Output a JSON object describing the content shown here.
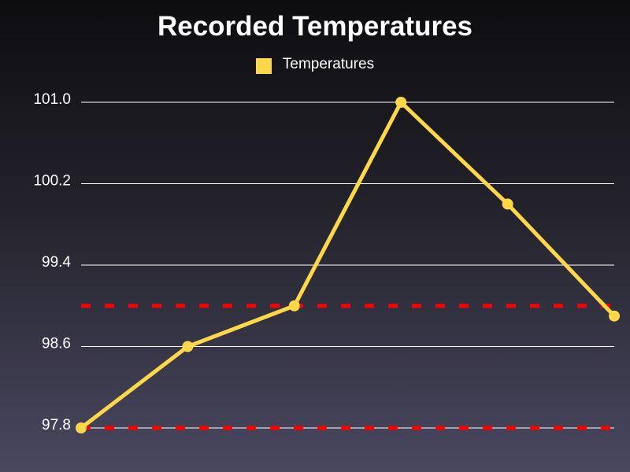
{
  "chart_data": {
    "type": "line",
    "title": "Recorded Temperatures",
    "xlabel": "",
    "ylabel": "",
    "ylim": [
      97.8,
      101.0
    ],
    "yticks": [
      "97.8",
      "98.6",
      "99.4",
      "100.2",
      "101.0"
    ],
    "grid": true,
    "legend_position": "top-center",
    "series": [
      {
        "name": "Temperatures",
        "color": "#ffd84a",
        "values": [
          97.8,
          98.6,
          99.0,
          101.0,
          100.0,
          98.9
        ]
      }
    ],
    "reference_lines": [
      {
        "y": 99.0,
        "color": "#ff0000",
        "style": "dashed"
      },
      {
        "y": 97.8,
        "color": "#ff0000",
        "style": "dashed"
      }
    ]
  }
}
